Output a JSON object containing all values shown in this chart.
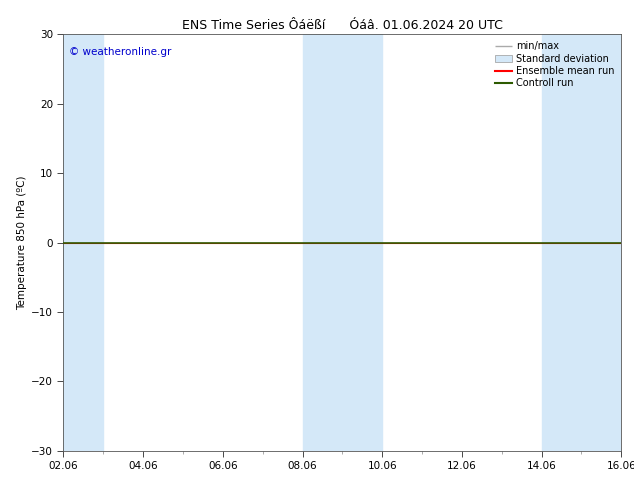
{
  "title": "ENS Time Series Ôáëßí      Óáâ. 01.06.2024 20 UTC",
  "ylabel": "Temperature 850 hPa (ºC)",
  "ylim": [
    -30,
    30
  ],
  "yticks": [
    -30,
    -20,
    -10,
    0,
    10,
    20,
    30
  ],
  "xlim_start": 0,
  "xlim_end": 14,
  "xtick_labels": [
    "02.06",
    "04.06",
    "06.06",
    "08.06",
    "10.06",
    "12.06",
    "14.06",
    "16.06"
  ],
  "xtick_positions": [
    0,
    2,
    4,
    6,
    8,
    10,
    12,
    14
  ],
  "blue_bands": [
    [
      0,
      1.0
    ],
    [
      6.0,
      7.0
    ],
    [
      7.0,
      8.0
    ],
    [
      12.0,
      14.0
    ]
  ],
  "zero_line_y": 0,
  "control_run_color": "#2d5a00",
  "ensemble_mean_color": "#ff0000",
  "watermark": "© weatheronline.gr",
  "watermark_color": "#0000cc",
  "band_color": "#d4e8f8",
  "background_color": "#ffffff",
  "legend_items": [
    "min/max",
    "Standard deviation",
    "Ensemble mean run",
    "Controll run"
  ],
  "legend_handle_colors": [
    "#aaaaaa",
    "#c8dff0",
    "#ff0000",
    "#2d5a00"
  ],
  "title_fontsize": 9,
  "axis_label_fontsize": 7.5,
  "tick_fontsize": 7.5
}
